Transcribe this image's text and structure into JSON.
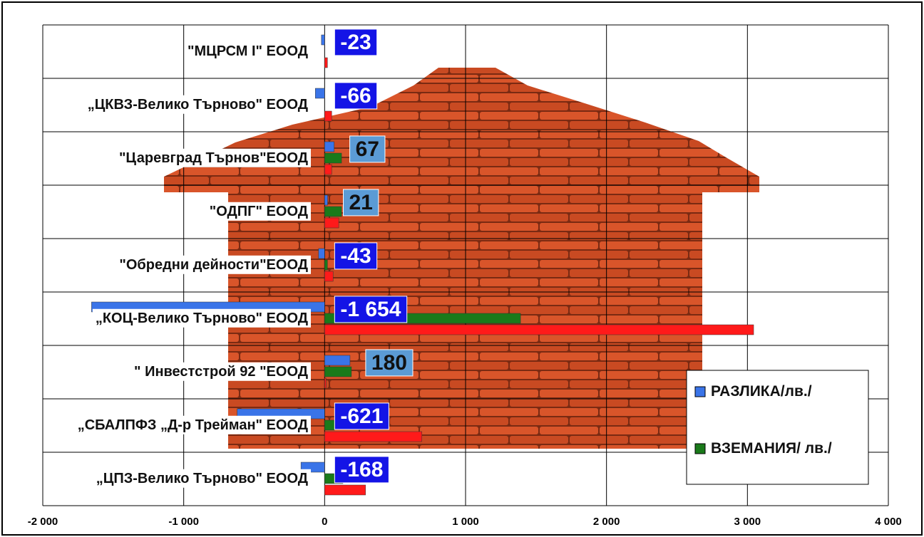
{
  "chart_data": {
    "type": "bar",
    "orientation": "horizontal",
    "categories": [
      "\"МЦРСМ I\" ЕООД",
      "„ЦКВЗ-Велико Търново\" ЕООД",
      "\"Царевград Търнов\"ЕООД",
      "\"ОДПГ\" ЕООД",
      "\"Обредни дейности\"ЕООД",
      "„КОЦ-Велико Търново\" ЕООД",
      "\" Инвестстрой 92 \"ЕООД",
      "„СБАЛПФЗ „Д-р Трейман\" ЕООД",
      "„ЦПЗ-Велико Търново\" ЕООД"
    ],
    "series": [
      {
        "name": "РАЗЛИКА/лв./",
        "color": "#3a74e8",
        "values": [
          -23,
          -66,
          67,
          21,
          -43,
          -1654,
          180,
          -621,
          -168
        ],
        "value_labels": [
          "-23",
          "-66",
          "67",
          "21",
          "-43",
          "-1 654",
          "180",
          "-621",
          "-168"
        ]
      },
      {
        "name": "ВЗЕМАНИЯ/ лв./",
        "color": "#1a7a1a",
        "values": [
          0,
          0,
          120,
          120,
          20,
          1390,
          190,
          70,
          130
        ]
      },
      {
        "color": "#ff1a1a",
        "values": [
          20,
          50,
          50,
          100,
          60,
          3044,
          10,
          690,
          290
        ]
      }
    ],
    "xlim": [
      -2000,
      4000
    ],
    "xticks": [
      {
        "value": -2000,
        "label": "-2 000"
      },
      {
        "value": -1000,
        "label": "-1 000"
      },
      0,
      {
        "value": 1000,
        "label": "1 000"
      },
      {
        "value": 2000,
        "label": "2 000"
      },
      {
        "value": 3000,
        "label": "3 000"
      },
      {
        "value": 4000,
        "label": "4 000"
      }
    ],
    "grid": true
  }
}
